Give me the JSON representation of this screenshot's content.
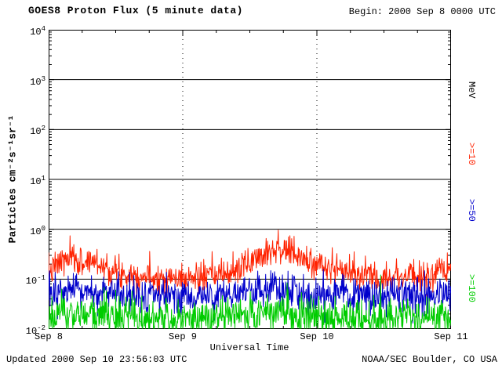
{
  "header": {
    "title": "GOES8 Proton Flux (5 minute data)",
    "begin": "Begin: 2000 Sep 8 0000 UTC"
  },
  "footer": {
    "updated": "Updated 2000 Sep 10 23:56:03 UTC",
    "credit": "NOAA/SEC Boulder, CO USA"
  },
  "axes": {
    "x_label": "Universal Time",
    "y_label": "Particles cm⁻²s⁻¹sr⁻¹"
  },
  "right_labels": {
    "unit": {
      "text": "MeV",
      "color": "#000000"
    },
    "ge10": {
      "text": ">=10",
      "color": "#ff2200"
    },
    "ge50": {
      "text": ">=50",
      "color": "#0000cc"
    },
    "ge100": {
      "text": ">=100",
      "color": "#00cc00"
    }
  },
  "chart_data": {
    "type": "line",
    "title": "GOES8 Proton Flux (5 minute data)",
    "xlabel": "Universal Time",
    "ylabel": "Particles cm^-2 s^-1 sr^-1",
    "x_range_hours": [
      0,
      72
    ],
    "x_tick_hours": [
      0,
      24,
      48,
      72
    ],
    "x_tick_labels": [
      "Sep 8",
      "Sep 9",
      "Sep 10",
      "Sep 11"
    ],
    "x_minor_step_hours": 6,
    "y_scale": "log10",
    "ylim": [
      0.01,
      10000
    ],
    "y_tick_exponents": [
      4,
      3,
      2,
      1,
      0,
      -1,
      -2
    ],
    "grid": {
      "horizontal": "solid",
      "vertical_day_lines": "dotted"
    },
    "legend_position": "right-rotated",
    "samples_per_hour": 12,
    "series": [
      {
        "name": ">=10 MeV",
        "color": "#ff2200",
        "noise_sigma": 0.35,
        "seed": 7,
        "trend_hours": [
          0,
          2,
          4,
          6,
          8,
          10,
          12,
          16,
          20,
          24,
          28,
          32,
          34,
          36,
          38,
          40,
          42,
          44,
          46,
          48,
          52,
          56,
          60,
          64,
          68,
          70,
          72
        ],
        "trend_values": [
          0.13,
          0.22,
          0.26,
          0.21,
          0.24,
          0.18,
          0.14,
          0.12,
          0.11,
          0.1,
          0.11,
          0.13,
          0.16,
          0.22,
          0.32,
          0.42,
          0.4,
          0.3,
          0.24,
          0.2,
          0.15,
          0.12,
          0.11,
          0.12,
          0.11,
          0.14,
          0.13
        ]
      },
      {
        "name": ">=50 MeV",
        "color": "#0000cc",
        "noise_sigma": 0.42,
        "seed": 13,
        "trend_hours": [
          0,
          6,
          12,
          18,
          24,
          30,
          36,
          40,
          44,
          48,
          54,
          60,
          66,
          72
        ],
        "trend_values": [
          0.05,
          0.055,
          0.048,
          0.045,
          0.044,
          0.046,
          0.052,
          0.06,
          0.055,
          0.05,
          0.046,
          0.044,
          0.048,
          0.05
        ]
      },
      {
        "name": ">=100 MeV",
        "color": "#00cc00",
        "noise_sigma": 0.48,
        "seed": 21,
        "trend_hours": [
          0,
          8,
          16,
          24,
          32,
          40,
          48,
          56,
          64,
          72
        ],
        "trend_values": [
          0.018,
          0.02,
          0.017,
          0.016,
          0.018,
          0.021,
          0.019,
          0.016,
          0.017,
          0.018
        ]
      }
    ]
  }
}
